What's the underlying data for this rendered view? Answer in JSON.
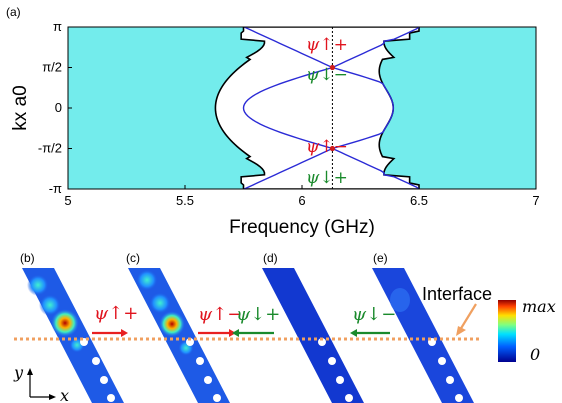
{
  "figure": {
    "panel_labels": [
      "(a)",
      "(b)",
      "(c)",
      "(d)",
      "(e)"
    ]
  },
  "chart_data": {
    "type": "line",
    "xlabel": "Frequency (GHz)",
    "ylabel": "kx a0",
    "xlim": [
      5,
      7
    ],
    "ylim": [
      -3.1416,
      3.1416
    ],
    "x_tick_labels": [
      "5",
      "5.5",
      "6",
      "6.5",
      "7"
    ],
    "y_tick_labels": [
      "π",
      "π/2",
      "0",
      "-π/2",
      "-π"
    ],
    "marked_frequency_GHz": 6.13,
    "mode_labels_upper": [
      "ψ↑+",
      "ψ↓−"
    ],
    "mode_labels_lower": [
      "ψ↑−",
      "ψ↓+"
    ],
    "colors": {
      "bulk": "#73ecec",
      "edge_states": "#2b2bd6",
      "boundary": "#000000",
      "dot": "#d01c1c",
      "upper_label": "#e0141e",
      "lower_label": "#1a8a2c"
    }
  },
  "field_panels": [
    {
      "label": "(b)",
      "mode": "ψ↑+",
      "arrow": "right",
      "arrow_color": "#e82020"
    },
    {
      "label": "(c)",
      "mode": "ψ↑−",
      "arrow": "right",
      "arrow_color": "#e82020"
    },
    {
      "label": "(d)",
      "mode": "ψ↓+",
      "arrow": "left",
      "arrow_color": "#1a8a2c"
    },
    {
      "label": "(e)",
      "mode": "ψ↓−",
      "arrow": "left",
      "arrow_color": "#1a8a2c"
    }
  ],
  "interface_label": "Interface",
  "colorbar": {
    "max_label": "max",
    "min_label": "0"
  },
  "axes_labels": {
    "y": "y",
    "x": "x"
  }
}
